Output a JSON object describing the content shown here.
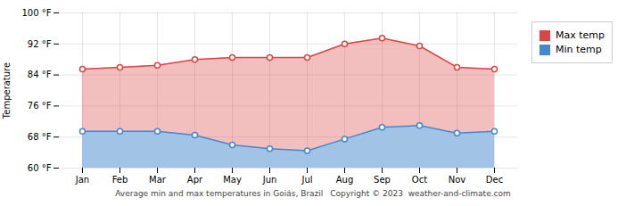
{
  "chart_data": {
    "type": "area",
    "title": "Average min and max temperatures in Goiás, Brazil",
    "annotations": [
      "Copyright © 2023  weather-and-climate.com"
    ],
    "y_label": "Temperature",
    "categories": [
      "Jan",
      "Feb",
      "Mar",
      "Apr",
      "May",
      "Jun",
      "Jul",
      "Aug",
      "Sep",
      "Oct",
      "Nov",
      "Dec"
    ],
    "series": [
      {
        "name": "Max temp",
        "color": "#dd4444",
        "values": [
          85.5,
          86.0,
          86.5,
          88.0,
          88.5,
          88.5,
          88.5,
          92.0,
          93.5,
          91.5,
          86.0,
          85.5
        ]
      },
      {
        "name": "Min temp",
        "color": "#4488cc",
        "values": [
          69.5,
          69.5,
          69.5,
          68.5,
          66.0,
          65.0,
          64.5,
          67.5,
          70.5,
          71.0,
          69.0,
          69.5
        ]
      }
    ],
    "ylim": [
      60,
      100
    ],
    "yticks": [
      {
        "value": 60,
        "label": "60 °F"
      },
      {
        "value": 68,
        "label": "68 °F"
      },
      {
        "value": 76,
        "label": "76 °F"
      },
      {
        "value": 84,
        "label": "84 °F"
      },
      {
        "value": 92,
        "label": "92 °F"
      },
      {
        "value": 100,
        "label": "100 °F"
      }
    ],
    "marker": "circle",
    "grid": true,
    "legend": "right"
  }
}
